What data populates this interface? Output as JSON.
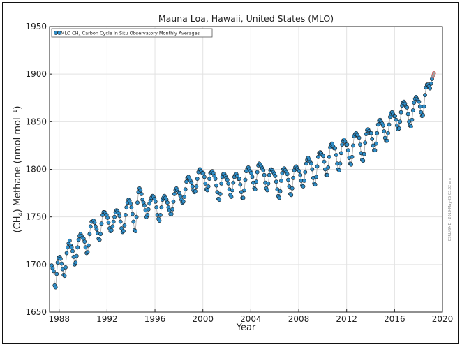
{
  "chart_data": {
    "type": "line",
    "title": "Mauna Loa, Hawaii, United States (MLO)",
    "xlabel": "Year",
    "ylabel_parts": {
      "open": "(CH",
      "sub": "4",
      "mid": ") Methane (nmol mol",
      "sup": "−1",
      "close": ")"
    },
    "legend": {
      "placement": "top-left",
      "parts": {
        "pre": "MLO CH",
        "sub": "4",
        "post": " Carbon Cycle In Situ Observatory Monthly Averages"
      }
    },
    "credit": "ESRL/GMD - 2019-May-26 03:32 am",
    "xlim": [
      1987.2,
      2020
    ],
    "ylim": [
      1650,
      1950
    ],
    "xticks": [
      1988,
      1992,
      1996,
      2000,
      2004,
      2008,
      2012,
      2016,
      2020
    ],
    "yticks": [
      1650,
      1700,
      1750,
      1800,
      1850,
      1900,
      1950
    ],
    "grid": true,
    "colors": {
      "point_fill": "#2f8ec9",
      "point_edge": "#1a1a1a",
      "line": "#9a9a9a",
      "recent_fill": "#a0a0a0",
      "recent_edge": "#e05050"
    },
    "series": {
      "x": [
        1987.375,
        1987.458,
        1987.542,
        1987.625,
        1987.708,
        1987.792,
        1987.875,
        1987.958,
        1988.042,
        1988.125,
        1988.208,
        1988.292,
        1988.375,
        1988.458,
        1988.542,
        1988.625,
        1988.708,
        1988.792,
        1988.875,
        1988.958,
        1989.042,
        1989.125,
        1989.208,
        1989.292,
        1989.375,
        1989.458,
        1989.542,
        1989.625,
        1989.708,
        1989.792,
        1989.875,
        1989.958,
        1990.042,
        1990.125,
        1990.208,
        1990.292,
        1990.375,
        1990.458,
        1990.542,
        1990.625,
        1990.708,
        1990.792,
        1990.875,
        1990.958,
        1991.042,
        1991.125,
        1991.208,
        1991.292,
        1991.375,
        1991.458,
        1991.542,
        1991.625,
        1991.708,
        1991.792,
        1991.875,
        1991.958,
        1992.042,
        1992.125,
        1992.208,
        1992.292,
        1992.375,
        1992.458,
        1992.542,
        1992.625,
        1992.708,
        1992.792,
        1992.875,
        1992.958,
        1993.042,
        1993.125,
        1993.208,
        1993.292,
        1993.375,
        1993.458,
        1993.542,
        1993.625,
        1993.708,
        1993.792,
        1993.875,
        1993.958,
        1994.042,
        1994.125,
        1994.208,
        1994.292,
        1994.375,
        1994.458,
        1994.542,
        1994.625,
        1994.708,
        1994.792,
        1994.875,
        1994.958,
        1995.042,
        1995.125,
        1995.208,
        1995.292,
        1995.375,
        1995.458,
        1995.542,
        1995.625,
        1995.708,
        1995.792,
        1995.875,
        1995.958,
        1996.042,
        1996.125,
        1996.208,
        1996.292,
        1996.375,
        1996.458,
        1996.542,
        1996.625,
        1996.708,
        1996.792,
        1996.875,
        1996.958,
        1997.042,
        1997.125,
        1997.208,
        1997.292,
        1997.375,
        1997.458,
        1997.542,
        1997.625,
        1997.708,
        1997.792,
        1997.875,
        1997.958,
        1998.042,
        1998.125,
        1998.208,
        1998.292,
        1998.375,
        1998.458,
        1998.542,
        1998.625,
        1998.708,
        1998.792,
        1998.875,
        1998.958,
        1999.042,
        1999.125,
        1999.208,
        1999.292,
        1999.375,
        1999.458,
        1999.542,
        1999.625,
        1999.708,
        1999.792,
        1999.875,
        1999.958,
        2000.042,
        2000.125,
        2000.208,
        2000.292,
        2000.375,
        2000.458,
        2000.542,
        2000.625,
        2000.708,
        2000.792,
        2000.875,
        2000.958,
        2001.042,
        2001.125,
        2001.208,
        2001.292,
        2001.375,
        2001.458,
        2001.542,
        2001.625,
        2001.708,
        2001.792,
        2001.875,
        2001.958,
        2002.042,
        2002.125,
        2002.208,
        2002.292,
        2002.375,
        2002.458,
        2002.542,
        2002.625,
        2002.708,
        2002.792,
        2002.875,
        2002.958,
        2003.042,
        2003.125,
        2003.208,
        2003.292,
        2003.375,
        2003.458,
        2003.542,
        2003.625,
        2003.708,
        2003.792,
        2003.875,
        2003.958,
        2004.042,
        2004.125,
        2004.208,
        2004.292,
        2004.375,
        2004.458,
        2004.542,
        2004.625,
        2004.708,
        2004.792,
        2004.875,
        2004.958,
        2005.042,
        2005.125,
        2005.208,
        2005.292,
        2005.375,
        2005.458,
        2005.542,
        2005.625,
        2005.708,
        2005.792,
        2005.875,
        2005.958,
        2006.042,
        2006.125,
        2006.208,
        2006.292,
        2006.375,
        2006.458,
        2006.542,
        2006.625,
        2006.708,
        2006.792,
        2006.875,
        2006.958,
        2007.042,
        2007.125,
        2007.208,
        2007.292,
        2007.375,
        2007.458,
        2007.542,
        2007.625,
        2007.708,
        2007.792,
        2007.875,
        2007.958,
        2008.042,
        2008.125,
        2008.208,
        2008.292,
        2008.375,
        2008.458,
        2008.542,
        2008.625,
        2008.708,
        2008.792,
        2008.875,
        2008.958,
        2009.042,
        2009.125,
        2009.208,
        2009.292,
        2009.375,
        2009.458,
        2009.542,
        2009.625,
        2009.708,
        2009.792,
        2009.875,
        2009.958,
        2010.042,
        2010.125,
        2010.208,
        2010.292,
        2010.375,
        2010.458,
        2010.542,
        2010.625,
        2010.708,
        2010.792,
        2010.875,
        2010.958,
        2011.042,
        2011.125,
        2011.208,
        2011.292,
        2011.375,
        2011.458,
        2011.542,
        2011.625,
        2011.708,
        2011.792,
        2011.875,
        2011.958,
        2012.042,
        2012.125,
        2012.208,
        2012.292,
        2012.375,
        2012.458,
        2012.542,
        2012.625,
        2012.708,
        2012.792,
        2012.875,
        2012.958,
        2013.042,
        2013.125,
        2013.208,
        2013.292,
        2013.375,
        2013.458,
        2013.542,
        2013.625,
        2013.708,
        2013.792,
        2013.875,
        2013.958,
        2014.042,
        2014.125,
        2014.208,
        2014.292,
        2014.375,
        2014.458,
        2014.542,
        2014.625,
        2014.708,
        2014.792,
        2014.875,
        2014.958,
        2015.042,
        2015.125,
        2015.208,
        2015.292,
        2015.375,
        2015.458,
        2015.542,
        2015.625,
        2015.708,
        2015.792,
        2015.875,
        2015.958,
        2016.042,
        2016.125,
        2016.208,
        2016.292,
        2016.375,
        2016.458,
        2016.542,
        2016.625,
        2016.708,
        2016.792,
        2016.875,
        2016.958,
        2017.042,
        2017.125,
        2017.208,
        2017.292,
        2017.375,
        2017.458,
        2017.542,
        2017.625,
        2017.708,
        2017.792,
        2017.875,
        2017.958,
        2018.042,
        2018.125,
        2018.208,
        2018.292,
        2018.375,
        2018.458,
        2018.542,
        2018.625,
        2018.708,
        2018.792,
        2018.875,
        2018.958,
        2019.042,
        2019.125,
        2019.208,
        2019.292
      ],
      "y": [
        1699,
        1696,
        1693,
        1678,
        1676,
        1690,
        1702,
        1707,
        1708,
        1706,
        1701,
        1695,
        1689,
        1688,
        1697,
        1712,
        1718,
        1722,
        1725,
        1720,
        1718,
        1714,
        1708,
        1700,
        1702,
        1709,
        1718,
        1726,
        1730,
        1732,
        1730,
        1728,
        1727,
        1724,
        1718,
        1712,
        1713,
        1720,
        1732,
        1740,
        1745,
        1745,
        1746,
        1744,
        1740,
        1737,
        1733,
        1727,
        1726,
        1732,
        1743,
        1752,
        1755,
        1755,
        1754,
        1752,
        1749,
        1744,
        1738,
        1735,
        1736,
        1740,
        1745,
        1750,
        1755,
        1757,
        1756,
        1754,
        1751,
        1745,
        1738,
        1734,
        1735,
        1741,
        1752,
        1760,
        1765,
        1768,
        1767,
        1764,
        1760,
        1753,
        1745,
        1736,
        1735,
        1750,
        1765,
        1776,
        1780,
        1778,
        1774,
        1768,
        1765,
        1762,
        1757,
        1750,
        1752,
        1758,
        1764,
        1767,
        1770,
        1772,
        1771,
        1769,
        1766,
        1760,
        1752,
        1748,
        1746,
        1752,
        1760,
        1768,
        1770,
        1772,
        1770,
        1768,
        1765,
        1760,
        1757,
        1753,
        1753,
        1758,
        1766,
        1774,
        1778,
        1780,
        1778,
        1776,
        1775,
        1772,
        1768,
        1765,
        1766,
        1771,
        1779,
        1787,
        1791,
        1792,
        1790,
        1788,
        1786,
        1782,
        1778,
        1776,
        1777,
        1782,
        1790,
        1797,
        1800,
        1800,
        1798,
        1796,
        1796,
        1792,
        1785,
        1779,
        1778,
        1782,
        1790,
        1796,
        1797,
        1798,
        1796,
        1793,
        1790,
        1783,
        1776,
        1769,
        1768,
        1774,
        1785,
        1792,
        1795,
        1795,
        1793,
        1791,
        1789,
        1785,
        1779,
        1773,
        1771,
        1778,
        1786,
        1792,
        1794,
        1795,
        1793,
        1790,
        1790,
        1784,
        1776,
        1770,
        1770,
        1778,
        1789,
        1798,
        1801,
        1802,
        1800,
        1798,
        1796,
        1792,
        1786,
        1780,
        1779,
        1787,
        1797,
        1804,
        1806,
        1805,
        1803,
        1801,
        1799,
        1794,
        1786,
        1780,
        1778,
        1785,
        1794,
        1799,
        1800,
        1799,
        1797,
        1795,
        1793,
        1787,
        1779,
        1772,
        1770,
        1777,
        1788,
        1796,
        1800,
        1801,
        1799,
        1797,
        1795,
        1789,
        1782,
        1774,
        1773,
        1780,
        1791,
        1799,
        1802,
        1803,
        1801,
        1799,
        1798,
        1794,
        1788,
        1783,
        1782,
        1788,
        1797,
        1806,
        1810,
        1812,
        1810,
        1808,
        1806,
        1800,
        1791,
        1785,
        1784,
        1792,
        1803,
        1813,
        1817,
        1818,
        1817,
        1815,
        1814,
        1808,
        1800,
        1794,
        1794,
        1802,
        1813,
        1823,
        1826,
        1827,
        1824,
        1822,
        1822,
        1815,
        1806,
        1800,
        1799,
        1806,
        1817,
        1826,
        1830,
        1831,
        1829,
        1826,
        1826,
        1820,
        1812,
        1806,
        1805,
        1813,
        1825,
        1835,
        1837,
        1838,
        1836,
        1834,
        1833,
        1826,
        1817,
        1810,
        1809,
        1816,
        1828,
        1837,
        1841,
        1842,
        1840,
        1838,
        1838,
        1832,
        1825,
        1820,
        1820,
        1827,
        1838,
        1847,
        1851,
        1852,
        1850,
        1848,
        1846,
        1840,
        1833,
        1830,
        1830,
        1838,
        1847,
        1855,
        1859,
        1860,
        1858,
        1856,
        1856,
        1852,
        1846,
        1842,
        1843,
        1850,
        1860,
        1867,
        1870,
        1871,
        1869,
        1866,
        1865,
        1858,
        1850,
        1846,
        1845,
        1852,
        1862,
        1870,
        1874,
        1876,
        1874,
        1872,
        1871,
        1866,
        1860,
        1856,
        1857,
        1866,
        1878,
        1886,
        1889,
        1889,
        1887,
        1885,
        1890,
        1895,
        1898,
        1901
      ],
      "recent_from_index": 382
    }
  }
}
